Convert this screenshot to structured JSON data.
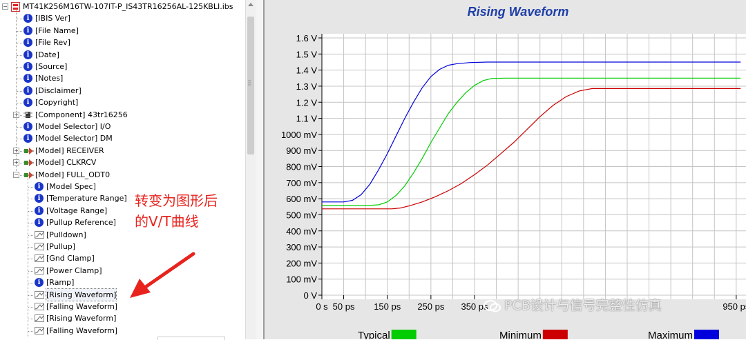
{
  "tree": {
    "root": "MT41K256M16TW-107IT-P_IS43TR16256AL-125KBLI.ibs",
    "items": [
      {
        "label": "[IBIS Ver]",
        "icon": "info-icon",
        "level": 1
      },
      {
        "label": "[File Name]",
        "icon": "info-icon",
        "level": 1
      },
      {
        "label": "[File Rev]",
        "icon": "info-icon",
        "level": 1
      },
      {
        "label": "[Date]",
        "icon": "info-icon",
        "level": 1
      },
      {
        "label": "[Source]",
        "icon": "info-icon",
        "level": 1
      },
      {
        "label": "[Notes]",
        "icon": "info-icon",
        "level": 1
      },
      {
        "label": "[Disclaimer]",
        "icon": "info-icon",
        "level": 1
      },
      {
        "label": "[Copyright]",
        "icon": "info-icon",
        "level": 1
      },
      {
        "label": "[Component] 43tr16256",
        "icon": "chip-icon",
        "level": 1,
        "expander": "+"
      },
      {
        "label": "[Model Selector] I/O",
        "icon": "info-icon",
        "level": 1
      },
      {
        "label": "[Model Selector] DM",
        "icon": "info-icon",
        "level": 1
      },
      {
        "label": "[Model] RECEIVER",
        "icon": "model-icon",
        "level": 1,
        "expander": "+"
      },
      {
        "label": "[Model] CLKRCV",
        "icon": "model-icon",
        "level": 1,
        "expander": "+"
      },
      {
        "label": "[Model] FULL_ODT0",
        "icon": "model-icon",
        "level": 1,
        "expander": "-"
      },
      {
        "label": "[Model Spec]",
        "icon": "info-icon",
        "level": 2
      },
      {
        "label": "[Temperature Range]",
        "icon": "info-icon",
        "level": 2
      },
      {
        "label": "[Voltage Range]",
        "icon": "info-icon",
        "level": 2
      },
      {
        "label": "[Pullup Reference]",
        "icon": "info-icon",
        "level": 2
      },
      {
        "label": "[Pulldown]",
        "icon": "curve-icon",
        "level": 2
      },
      {
        "label": "[Pullup]",
        "icon": "curve-icon",
        "level": 2
      },
      {
        "label": "[Gnd Clamp]",
        "icon": "curve-icon",
        "level": 2
      },
      {
        "label": "[Power Clamp]",
        "icon": "curve-icon",
        "level": 2
      },
      {
        "label": "[Ramp]",
        "icon": "info-icon",
        "level": 2
      },
      {
        "label": "[Rising Waveform]",
        "icon": "curve-icon",
        "level": 2,
        "selected": true
      },
      {
        "label": "[Falling Waveform]",
        "icon": "curve-icon",
        "level": 2
      },
      {
        "label": "[Rising Waveform]",
        "icon": "curve-icon",
        "level": 2
      },
      {
        "label": "[Falling Waveform]",
        "icon": "curve-icon",
        "level": 2
      }
    ]
  },
  "annotation": {
    "line1": "转变为图形后",
    "line2": "的V/T曲线",
    "color": "#e8231d"
  },
  "watermark": {
    "text": "PCB设计与信号完整性仿真"
  },
  "chart_data": {
    "type": "line",
    "title": "Rising Waveform",
    "xlabel": "",
    "ylabel": "",
    "x_unit": "ps",
    "y_unit": "V",
    "xlim": [
      0,
      960
    ],
    "ylim": [
      0,
      1.6
    ],
    "grid": true,
    "legend_position": "bottom",
    "y_ticks": [
      {
        "value": 0,
        "label": "0 V"
      },
      {
        "value": 0.1,
        "label": "100 mV"
      },
      {
        "value": 0.2,
        "label": "200 mV"
      },
      {
        "value": 0.3,
        "label": "300 mV"
      },
      {
        "value": 0.4,
        "label": "400 mV"
      },
      {
        "value": 0.5,
        "label": "500 mV"
      },
      {
        "value": 0.6,
        "label": "600 mV"
      },
      {
        "value": 0.7,
        "label": "700 mV"
      },
      {
        "value": 0.8,
        "label": "800 mV"
      },
      {
        "value": 0.9,
        "label": "900 mV"
      },
      {
        "value": 1.0,
        "label": "1000 mV"
      },
      {
        "value": 1.1,
        "label": "1.1 V"
      },
      {
        "value": 1.2,
        "label": "1.2 V"
      },
      {
        "value": 1.3,
        "label": "1.3 V"
      },
      {
        "value": 1.4,
        "label": "1.4 V"
      },
      {
        "value": 1.5,
        "label": "1.5 V"
      },
      {
        "value": 1.6,
        "label": "1.6 V"
      }
    ],
    "x_ticks": [
      {
        "value": 0,
        "label": "0 s"
      },
      {
        "value": 50,
        "label": "50 ps"
      },
      {
        "value": 150,
        "label": "150 ps"
      },
      {
        "value": 250,
        "label": "250 ps"
      },
      {
        "value": 350,
        "label": "350 ps"
      },
      {
        "value": 950,
        "label": "950 ps"
      }
    ],
    "x_gridlines": [
      50,
      100,
      150,
      200,
      250,
      300,
      350,
      400,
      450,
      500,
      550,
      600,
      650,
      700,
      750,
      800,
      850,
      900,
      950
    ],
    "series": [
      {
        "name": "Typical",
        "color": "#00cc00",
        "x": [
          0,
          100,
          130,
          150,
          170,
          190,
          210,
          230,
          250,
          270,
          290,
          310,
          330,
          350,
          370,
          390,
          420,
          960
        ],
        "y": [
          0.557,
          0.557,
          0.562,
          0.58,
          0.62,
          0.68,
          0.76,
          0.85,
          0.95,
          1.04,
          1.13,
          1.2,
          1.26,
          1.305,
          1.335,
          1.348,
          1.35,
          1.35
        ]
      },
      {
        "name": "Minimum",
        "color": "#cc0000",
        "x": [
          0,
          160,
          180,
          200,
          230,
          260,
          290,
          320,
          350,
          380,
          410,
          440,
          470,
          500,
          530,
          560,
          590,
          620,
          960
        ],
        "y": [
          0.537,
          0.537,
          0.542,
          0.555,
          0.58,
          0.612,
          0.65,
          0.695,
          0.75,
          0.81,
          0.88,
          0.95,
          1.03,
          1.11,
          1.18,
          1.235,
          1.27,
          1.285,
          1.285
        ]
      },
      {
        "name": "Maximum",
        "color": "#0000dd",
        "x": [
          0,
          50,
          70,
          90,
          110,
          130,
          150,
          170,
          190,
          210,
          230,
          250,
          270,
          290,
          310,
          340,
          380,
          960
        ],
        "y": [
          0.58,
          0.58,
          0.59,
          0.625,
          0.69,
          0.78,
          0.88,
          0.99,
          1.1,
          1.2,
          1.29,
          1.36,
          1.405,
          1.43,
          1.44,
          1.447,
          1.45,
          1.45
        ]
      }
    ]
  }
}
